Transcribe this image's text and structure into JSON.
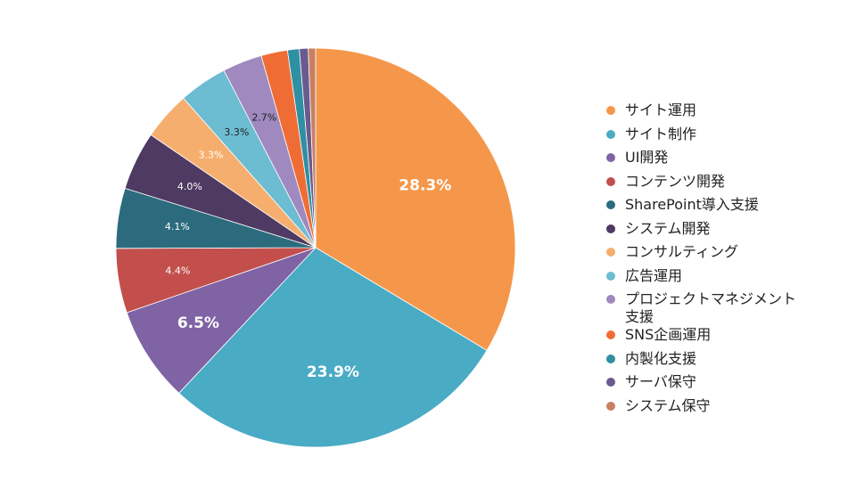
{
  "chart_data": {
    "type": "pie",
    "slices": [
      {
        "label": "サイト運用",
        "value": 28.3,
        "color": "#f5974a",
        "data_label": "28.3%"
      },
      {
        "label": "サイト制作",
        "value": 23.9,
        "color": "#4aabc5",
        "data_label": "23.9%"
      },
      {
        "label": "UI開発",
        "value": 6.5,
        "color": "#7f63a5",
        "data_label": "6.5%"
      },
      {
        "label": "コンテンツ開発",
        "value": 4.4,
        "color": "#c34f4c",
        "data_label": "4.4%"
      },
      {
        "label": "SharePoint導入支援",
        "value": 4.1,
        "color": "#2c6b7d",
        "data_label": "4.1%"
      },
      {
        "label": "システム開発",
        "value": 4.0,
        "color": "#4e3a62",
        "data_label": "4.0%"
      },
      {
        "label": "コンサルティング",
        "value": 3.3,
        "color": "#f6ae6e",
        "data_label": "3.3%"
      },
      {
        "label": "広告運用",
        "value": 3.3,
        "color": "#6cbcd2",
        "data_label": "3.3%"
      },
      {
        "label": "プロジェクトマネジメント支援",
        "value": 2.7,
        "color": "#9f89be",
        "data_label": "2.7%"
      },
      {
        "label": "SNS企画運用",
        "value": 1.8,
        "color": "#ef6d35",
        "data_label": ""
      },
      {
        "label": "内製化支援",
        "value": 0.8,
        "color": "#2f8fa3",
        "data_label": ""
      },
      {
        "label": "サーバ保守",
        "value": 0.6,
        "color": "#6a5a8e",
        "data_label": ""
      },
      {
        "label": "システム保守",
        "value": 0.5,
        "color": "#c98062",
        "data_label": ""
      }
    ],
    "legend_position": "right"
  }
}
